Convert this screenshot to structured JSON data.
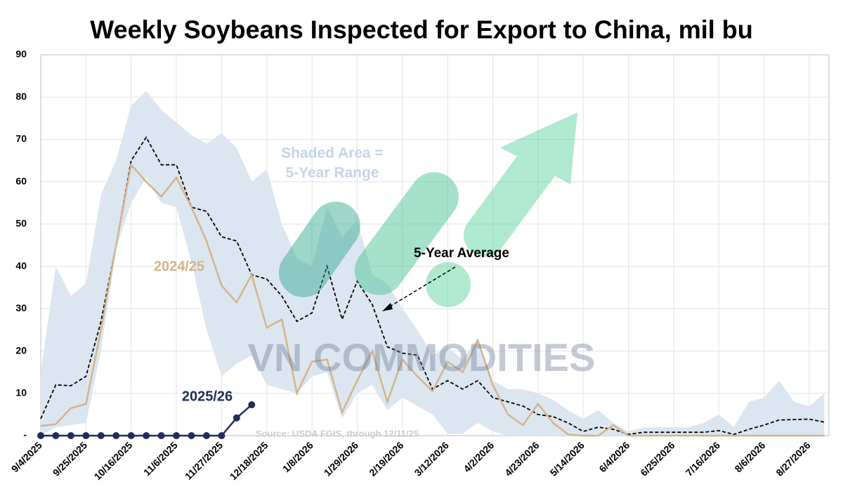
{
  "chart_data": {
    "type": "line",
    "title": "Weekly Soybeans Inspected for Export to China, mil bu",
    "categories": [
      "9/4/2025",
      null,
      null,
      "9/25/2025",
      null,
      null,
      "10/16/2025",
      null,
      null,
      "11/6/2025",
      null,
      null,
      "11/27/2025",
      null,
      null,
      "12/18/2025",
      null,
      null,
      "1/8/2026",
      null,
      null,
      "1/29/2026",
      null,
      null,
      "2/19/2026",
      null,
      null,
      "3/12/2026",
      null,
      null,
      "4/2/2026",
      null,
      null,
      "4/23/2026",
      null,
      null,
      "5/14/2026",
      null,
      null,
      "6/4/2026",
      null,
      null,
      "6/25/2026",
      null,
      null,
      "7/16/2026",
      null,
      null,
      "8/6/2026",
      null,
      null,
      "8/27/2026",
      null
    ],
    "ylim": [
      0,
      90
    ],
    "yticks": [
      {
        "value": 0,
        "label": "-"
      },
      10,
      20,
      30,
      40,
      50,
      60,
      70,
      80,
      90
    ],
    "grid": true,
    "range": {
      "color": "#dce6f1",
      "upper": [
        15,
        40,
        33,
        36,
        57,
        65,
        78,
        81.5,
        77,
        74,
        71,
        69,
        71.5,
        68,
        60,
        63,
        50,
        42,
        40,
        54,
        47,
        51,
        38,
        36,
        30,
        25,
        19,
        21,
        18,
        23,
        13,
        11,
        11,
        10,
        8.5,
        6,
        4,
        6,
        3,
        1,
        2,
        2,
        2,
        2,
        3,
        5,
        2,
        8,
        9,
        13,
        8,
        7,
        10
      ],
      "lower": [
        0,
        2,
        2.5,
        3,
        20,
        44,
        55,
        61,
        55,
        54,
        41,
        25,
        14,
        17,
        19,
        12,
        11,
        10,
        14,
        15,
        4,
        10,
        12,
        6,
        9,
        7,
        5,
        0.5,
        0.5,
        3,
        1,
        0,
        0,
        0,
        0,
        0,
        0,
        0,
        0,
        0,
        0,
        0,
        0,
        0,
        0,
        0,
        0,
        0,
        0,
        0,
        0,
        0,
        0
      ]
    },
    "series": [
      {
        "name": "5-Year Average",
        "color": "#000000",
        "dashed": true,
        "markers": false,
        "values": [
          4,
          12,
          11.8,
          14,
          27,
          45,
          65,
          70.5,
          64,
          64,
          54,
          53,
          47,
          46,
          38,
          37,
          33,
          27,
          29,
          40,
          27.5,
          36.5,
          31,
          21,
          19.5,
          19,
          11,
          13,
          11,
          13,
          9,
          8,
          7,
          5,
          4.5,
          3,
          1,
          2,
          1.5,
          0.3,
          0.8,
          0.8,
          0.8,
          0.8,
          0.8,
          1.2,
          0.3,
          1.5,
          2.5,
          3.7,
          3.8,
          3.9,
          3.2
        ]
      },
      {
        "name": "2024/25",
        "color": "#d4b48a",
        "dashed": false,
        "markers": false,
        "values": [
          2.3,
          2.7,
          6.5,
          7.5,
          25,
          45,
          64,
          60,
          56.5,
          61,
          54,
          46,
          35.5,
          31.5,
          38,
          25.5,
          27.5,
          10,
          17.5,
          18,
          5.5,
          13,
          20,
          8,
          18,
          14,
          10.5,
          17.5,
          15,
          22.5,
          12,
          5,
          2.5,
          7.5,
          3,
          0.3,
          0,
          0,
          2.5,
          0,
          0,
          0,
          0,
          0,
          0,
          0,
          0,
          0,
          0,
          0,
          0,
          0,
          0
        ]
      },
      {
        "name": "2025/26",
        "color": "#1f2d5c",
        "dashed": false,
        "markers": true,
        "values": [
          0,
          0,
          0,
          0,
          0,
          0,
          0,
          0,
          0,
          0,
          0,
          0,
          0,
          4.2,
          7.3,
          null,
          null,
          null,
          null,
          null,
          null,
          null,
          null,
          null,
          null,
          null,
          null,
          null,
          null,
          null,
          null,
          null,
          null,
          null,
          null,
          null,
          null,
          null,
          null,
          null,
          null,
          null,
          null,
          null,
          null,
          null,
          null,
          null,
          null,
          null,
          null,
          null,
          null
        ]
      }
    ],
    "annotations": [
      "Shaded Area =",
      "5-Year Range"
    ],
    "watermark": "VN COMMODITIES",
    "source": "Source: USDA FGIS, through 12/11/25"
  }
}
